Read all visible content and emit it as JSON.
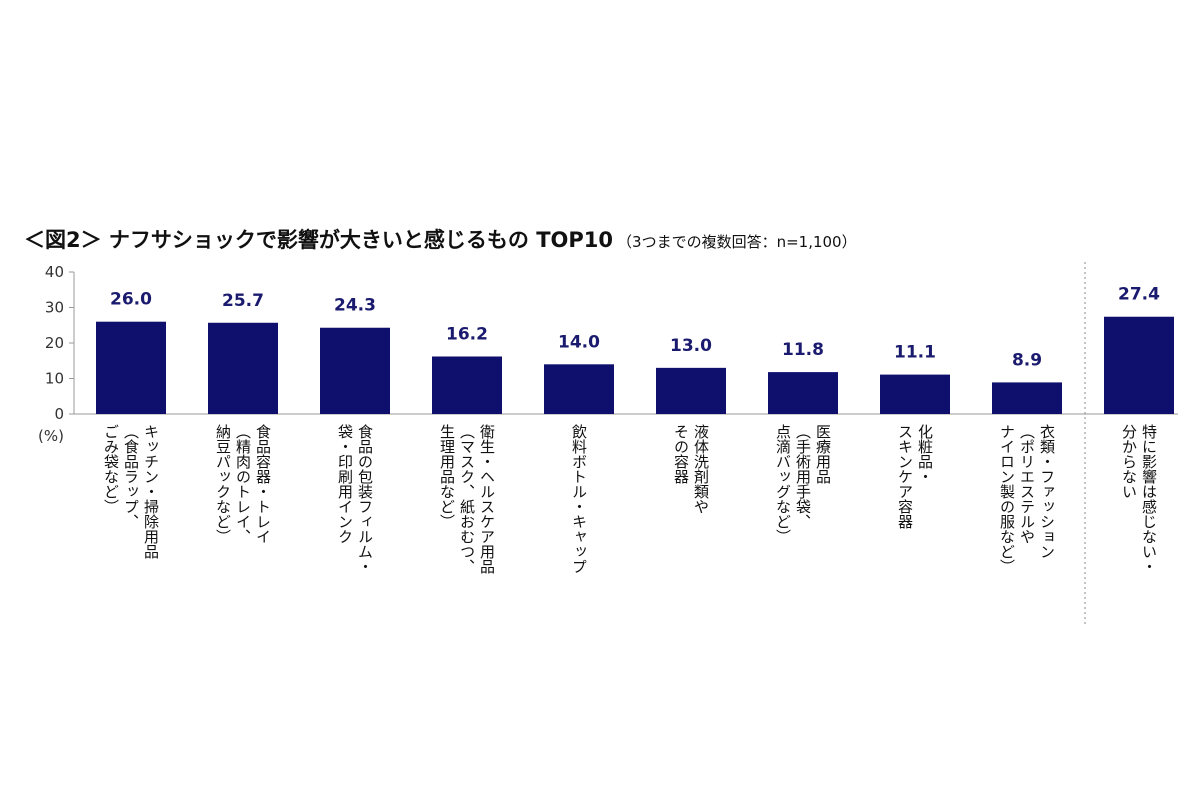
{
  "chart_data": {
    "type": "bar",
    "title": "＜図2＞ ナフサショックで影響が大きいと感じるもの TOP10",
    "subtitle": "（3つまでの複数回答：n=1,100）",
    "ylabel": "(%)",
    "ylim": [
      0,
      40
    ],
    "yticks": [
      "0",
      "10",
      "20",
      "30",
      "40"
    ],
    "grid": false,
    "bar_color": "#0f0f6e",
    "categories": [
      [
        "キッチン・掃除用品",
        "（食品ラップ、",
        "ごみ袋など）"
      ],
      [
        "食品容器・トレイ",
        "（精肉のトレイ、",
        "納豆パックなど）"
      ],
      [
        "食品の包装フィルム・",
        "袋・印刷用インク"
      ],
      [
        "衛生・ヘルスケア用品",
        "（マスク、紙おむつ、",
        "生理用品など）"
      ],
      [
        "飲料ボトル・キャップ"
      ],
      [
        "液体洗剤類や",
        "その容器"
      ],
      [
        "医療用品",
        "（手術用手袋、",
        "点滴バッグなど）"
      ],
      [
        "化粧品・",
        "スキンケア容器"
      ],
      [
        "衣類・ファッション",
        "（ポリエステルや",
        "ナイロン製の服など）"
      ],
      [
        "特に影響は感じない・",
        "分からない"
      ]
    ],
    "values": [
      26.0,
      25.7,
      24.3,
      16.2,
      14.0,
      13.0,
      11.8,
      11.1,
      8.9,
      27.4
    ],
    "value_labels": [
      "26.0",
      "25.7",
      "24.3",
      "16.2",
      "14.0",
      "13.0",
      "11.8",
      "11.1",
      "8.9",
      "27.4"
    ],
    "separator_before_index": 9
  }
}
